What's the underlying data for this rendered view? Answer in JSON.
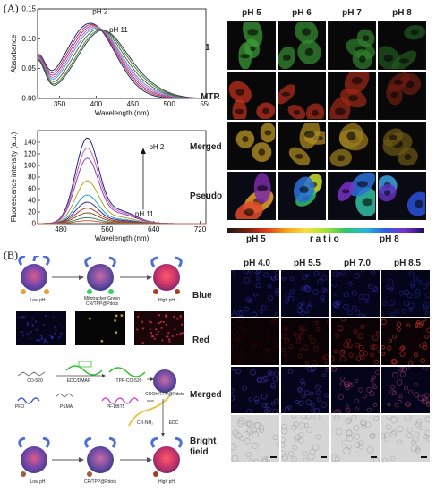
{
  "panelA": {
    "label": "(A)",
    "headers": [
      "pH 5",
      "pH 6",
      "pH 7",
      "pH 8"
    ],
    "rows": [
      "1",
      "MTR",
      "Merged",
      "Pseudo"
    ],
    "ratio_bar": {
      "left": "pH 5",
      "middle": "r a t i o",
      "right": "pH 8"
    }
  },
  "panelB": {
    "label": "(B)",
    "headers": [
      "pH 4.0",
      "pH 5.5",
      "pH 7.0",
      "pH 8.5"
    ],
    "rows": [
      "Blue",
      "Red",
      "Merged",
      "Bright\nfield"
    ],
    "scheme": {
      "low_ph": "Low pH",
      "high_ph": "High pH",
      "mito_label": "Mitotracker Green\nCR/TPP@Pdots",
      "co520": "CO-520",
      "edc": "EDC/DMAP",
      "tpp_co520": "TPP-CO-520",
      "pfo": "PFO",
      "psma": "PSMA",
      "pfdbt5": "PF-DBT5",
      "cooh_tpp": "COOH/TPP@Pdots",
      "cr_nh2": "CR-NH₂",
      "edc2": "EDC",
      "low_ph2": "Low pH",
      "cr_tpp": "CR/TPP@Pdots",
      "high_ph2": "High pH"
    }
  },
  "chart_data": [
    {
      "type": "line",
      "xlabel": "Wavelength (nm)",
      "ylabel": "Absorbance",
      "xlim": [
        320,
        550
      ],
      "ylim": [
        0,
        0.15
      ],
      "xticks": [
        350,
        400,
        450,
        500,
        550
      ],
      "yticks": [
        0.0,
        0.05,
        0.1,
        0.15
      ],
      "annotations": [
        "pH 2",
        "pH 11"
      ],
      "series": [
        {
          "color": "#1a2a8a",
          "peak_x": 392,
          "peak_y": 0.126
        },
        {
          "color": "#c0392b",
          "peak_x": 394,
          "peak_y": 0.124
        },
        {
          "color": "#8e44ad",
          "peak_x": 396,
          "peak_y": 0.122
        },
        {
          "color": "#d35fb0",
          "peak_x": 398,
          "peak_y": 0.12
        },
        {
          "color": "#3aa0d8",
          "peak_x": 400,
          "peak_y": 0.118
        },
        {
          "color": "#7a5a2a",
          "peak_x": 403,
          "peak_y": 0.116
        },
        {
          "color": "#2e8b57",
          "peak_x": 406,
          "peak_y": 0.114
        },
        {
          "color": "#444444",
          "peak_x": 408,
          "peak_y": 0.113
        }
      ]
    },
    {
      "type": "line",
      "xlabel": "Wavelength (nm)",
      "ylabel": "Fluorescence intensity (a.u.)",
      "xlim": [
        440,
        730
      ],
      "ylim": [
        0,
        160
      ],
      "xticks": [
        480,
        560,
        640,
        720
      ],
      "yticks": [
        0,
        20,
        40,
        60,
        80,
        100,
        120,
        140
      ],
      "annotations": [
        "pH 2",
        "pH 11"
      ],
      "series": [
        {
          "color": "#1a2a8a",
          "peak_x": 525,
          "peak_y": 144
        },
        {
          "color": "#d35fb0",
          "peak_x": 525,
          "peak_y": 127
        },
        {
          "color": "#8e44ad",
          "peak_x": 525,
          "peak_y": 110
        },
        {
          "color": "#b8a020",
          "peak_x": 525,
          "peak_y": 72
        },
        {
          "color": "#2aa0d8",
          "peak_x": 525,
          "peak_y": 48
        },
        {
          "color": "#3a2a8a",
          "peak_x": 525,
          "peak_y": 36
        },
        {
          "color": "#c0392b",
          "peak_x": 525,
          "peak_y": 26
        },
        {
          "color": "#7a5a2a",
          "peak_x": 525,
          "peak_y": 18
        },
        {
          "color": "#2e8b57",
          "peak_x": 525,
          "peak_y": 10
        },
        {
          "color": "#cc5a40",
          "peak_x": 525,
          "peak_y": 5
        }
      ]
    }
  ]
}
